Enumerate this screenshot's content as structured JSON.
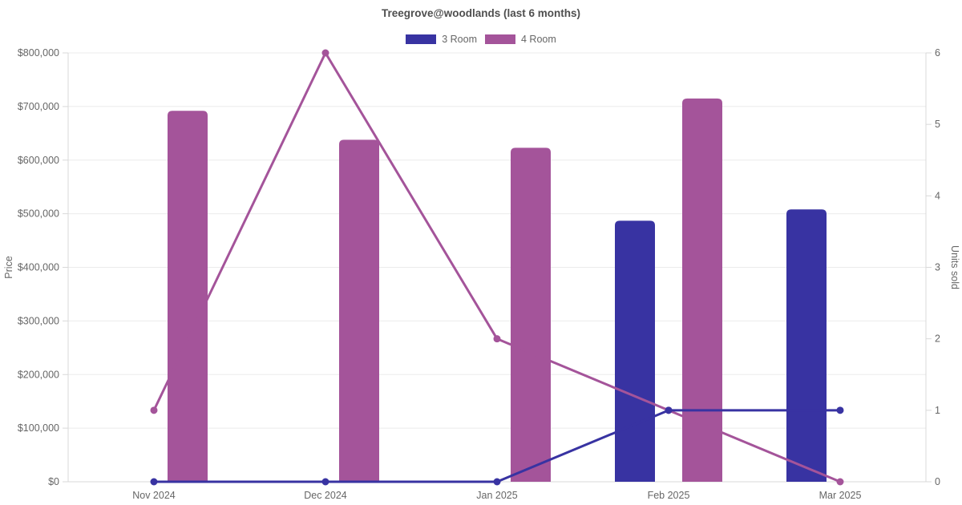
{
  "title": "Treegrove@woodlands (last 6 months)",
  "legend": [
    {
      "label": "3 Room",
      "color": "#3833a2"
    },
    {
      "label": "4 Room",
      "color": "#a4549a"
    }
  ],
  "colors": {
    "three_room": "#3833a2",
    "four_room": "#a4549a",
    "grid_line": "#ebebeb",
    "axis_border": "#d9d9d9",
    "tick_text": "#666666",
    "title_text": "#4f4f4f",
    "background": "#ffffff"
  },
  "chart_data": {
    "type": "bar",
    "subtype": "bar-line-combo",
    "title": "Treegrove@woodlands (last 6 months)",
    "categories": [
      "Nov 2024",
      "Dec 2024",
      "Jan 2025",
      "Feb 2025",
      "Mar 2025"
    ],
    "bar_series": [
      {
        "name": "3 Room",
        "color": "#3833a2",
        "axis": "left",
        "values": [
          null,
          null,
          null,
          487000,
          508000
        ]
      },
      {
        "name": "4 Room",
        "color": "#a4549a",
        "axis": "left",
        "values": [
          692000,
          638000,
          623000,
          715000,
          null
        ]
      }
    ],
    "line_series": [
      {
        "name": "3 Room",
        "color": "#3833a2",
        "axis": "right",
        "values": [
          0,
          0,
          0,
          1,
          1
        ]
      },
      {
        "name": "4 Room",
        "color": "#a4549a",
        "axis": "right",
        "values": [
          1,
          6,
          2,
          1,
          0
        ]
      }
    ],
    "y_left": {
      "label": "Price",
      "min": 0,
      "max": 800000,
      "step": 100000,
      "tick_prefix": "$"
    },
    "y_right": {
      "label": "Units sold",
      "min": 0,
      "max": 6,
      "step": 1
    },
    "grid": "horizontal-only",
    "legend_position": "top"
  }
}
